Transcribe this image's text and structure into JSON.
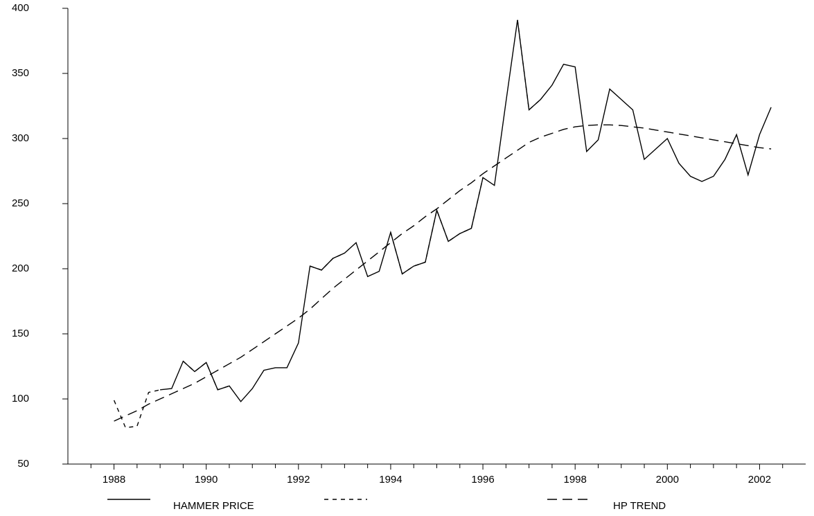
{
  "chart_data": {
    "type": "line",
    "x": [
      1988,
      1988.25,
      1988.5,
      1988.75,
      1989,
      1989.25,
      1989.5,
      1989.75,
      1990,
      1990.25,
      1990.5,
      1990.75,
      1991,
      1991.25,
      1991.5,
      1991.75,
      1992,
      1992.25,
      1992.5,
      1992.75,
      1993,
      1993.25,
      1993.5,
      1993.75,
      1994,
      1994.25,
      1994.5,
      1994.75,
      1995,
      1995.25,
      1995.5,
      1995.75,
      1996,
      1996.25,
      1996.5,
      1996.75,
      1997,
      1997.25,
      1997.5,
      1997.75,
      1998,
      1998.25,
      1998.5,
      1998.75,
      1999,
      1999.25,
      1999.5,
      1999.75,
      2000,
      2000.25,
      2000.5,
      2000.75,
      2001,
      2001.25,
      2001.5,
      2001.75,
      2002,
      2002.25
    ],
    "series": [
      {
        "name": "HAMMER PRICE",
        "color": "#000000",
        "dash": "none",
        "values": [
          null,
          null,
          null,
          null,
          107,
          108,
          129,
          121,
          128,
          107,
          110,
          98,
          108,
          122,
          124,
          124,
          143,
          202,
          199,
          208,
          212,
          220,
          194,
          198,
          228,
          196,
          202,
          205,
          245,
          221,
          227,
          231,
          270,
          264,
          328,
          391,
          322,
          330,
          341,
          357,
          355,
          290,
          299,
          338,
          330,
          322,
          284,
          292,
          300,
          281,
          271,
          267,
          271,
          284,
          303,
          272,
          303,
          324
        ]
      },
      {
        "name": null,
        "color": "#000000",
        "dash": "6 6",
        "values": [
          99,
          78,
          79,
          105,
          107,
          null,
          129,
          121,
          128,
          107,
          110,
          null,
          null,
          null,
          null,
          null,
          null,
          202,
          199,
          208,
          212,
          null,
          null,
          null,
          228,
          196,
          202,
          205,
          245,
          221,
          227,
          231,
          270,
          null,
          null,
          391,
          322,
          330,
          null,
          null,
          null,
          null,
          null,
          null,
          null,
          null,
          null,
          null,
          null,
          null,
          null,
          null,
          null,
          null,
          null,
          null,
          null,
          null
        ]
      },
      {
        "name": "HP TREND",
        "color": "#000000",
        "dash": "14 8",
        "values": [
          83,
          87,
          91,
          96,
          100,
          104,
          108,
          112,
          117,
          122,
          127,
          132,
          138,
          144,
          150,
          156,
          162,
          169,
          177,
          185,
          192,
          199,
          206,
          213,
          220,
          227,
          233,
          240,
          246,
          253,
          260,
          266,
          273,
          279,
          285,
          291,
          297,
          301,
          304,
          307,
          309,
          310,
          310.5,
          310.5,
          310,
          309,
          308,
          306.5,
          305,
          303.5,
          302,
          300.5,
          299,
          297.5,
          296,
          294.5,
          293,
          292
        ]
      }
    ],
    "xlim": [
      1987,
      2003
    ],
    "xticks": [
      1988,
      1990,
      1992,
      1994,
      1996,
      1998,
      2000,
      2002
    ],
    "xminorticks": [
      1987.5,
      1988.5,
      1989,
      1989.5,
      1990.5,
      1991,
      1991.5,
      1992.5,
      1993,
      1993.5,
      1994.5,
      1995,
      1995.5,
      1996.5,
      1997,
      1997.5,
      1998.5,
      1999,
      1999.5,
      2000.5,
      2001,
      2001.5,
      2002.5
    ],
    "ylim": [
      50,
      400
    ],
    "yticks": [
      50,
      100,
      150,
      200,
      250,
      300,
      350,
      400
    ],
    "grid": false,
    "legend": "bottom"
  }
}
